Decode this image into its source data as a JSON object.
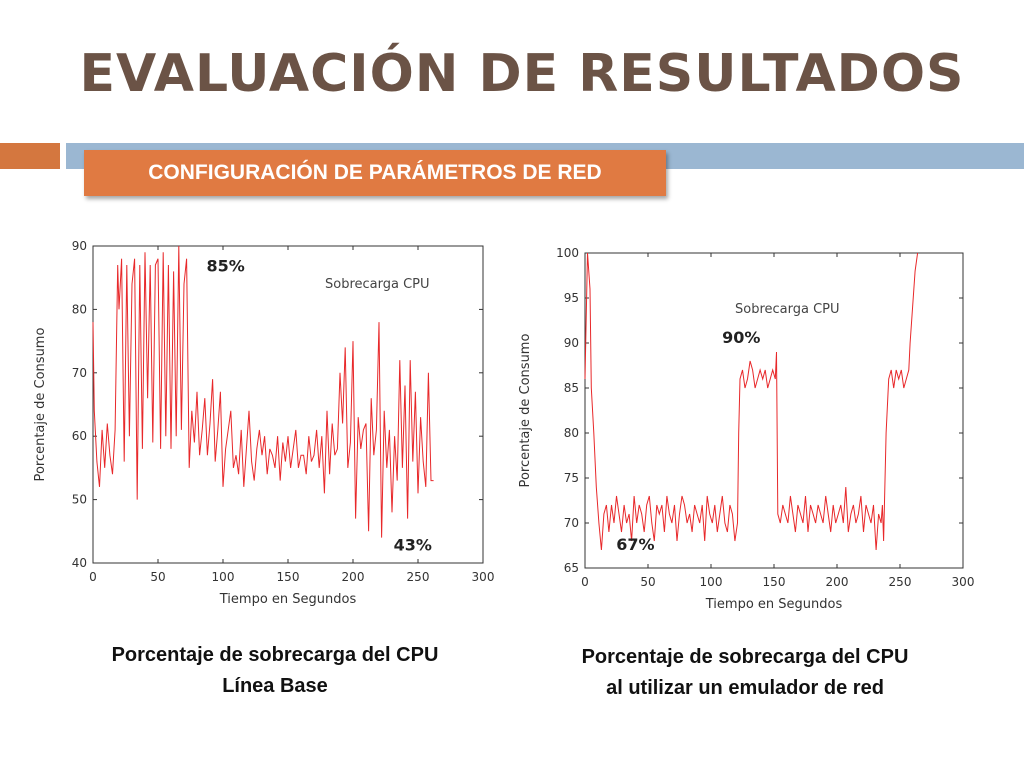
{
  "slide": {
    "title": "EVALUACIÓN DE RESULTADOS",
    "subtitle": "CONFIGURACIÓN DE PARÁMETROS DE RED",
    "accent_colors": {
      "title": "#6b5346",
      "orange": "#e07a42",
      "blue": "#9bb7d2"
    }
  },
  "chart_data": [
    {
      "type": "line",
      "legend": "Sobrecarga CPU",
      "legend_position": "top-right",
      "xlabel": "Tiempo en Segundos",
      "ylabel": "Porcentaje de Consumo",
      "xlim": [
        0,
        300
      ],
      "ylim": [
        40,
        90
      ],
      "xticks": [
        0,
        50,
        100,
        150,
        200,
        250,
        300
      ],
      "yticks": [
        40,
        50,
        60,
        70,
        80,
        90
      ],
      "line_color": "#e8282a",
      "annotations": [
        {
          "text": "85%",
          "x": 102,
          "y": 86
        },
        {
          "text": "43%",
          "x": 246,
          "y": 42
        }
      ],
      "series": [
        {
          "x": [
            0,
            1,
            3,
            5,
            7,
            9,
            11,
            13,
            15,
            17,
            19,
            20,
            22,
            24,
            26,
            28,
            30,
            32,
            34,
            36,
            38,
            40,
            42,
            44,
            46,
            48,
            50,
            52,
            54,
            56,
            58,
            60,
            62,
            64,
            66,
            68,
            70,
            72,
            74,
            76,
            78,
            80,
            82,
            84,
            86,
            88,
            90,
            92,
            94,
            96,
            98,
            100,
            102,
            104,
            106,
            108,
            110,
            112,
            114,
            116,
            118,
            120,
            122,
            124,
            126,
            128,
            130,
            132,
            134,
            136,
            138,
            140,
            142,
            144,
            146,
            148,
            150,
            152,
            154,
            156,
            158,
            160,
            162,
            164,
            166,
            168,
            170,
            172,
            174,
            176,
            178,
            180,
            182,
            184,
            186,
            188,
            190,
            192,
            194,
            196,
            198,
            200,
            202,
            204,
            206,
            208,
            210,
            212,
            214,
            216,
            218,
            220,
            222,
            224,
            226,
            228,
            230,
            232,
            234,
            236,
            238,
            240,
            242,
            244,
            246,
            248,
            250,
            252,
            254,
            256,
            258,
            260,
            262
          ],
          "y": [
            78,
            64,
            56,
            52,
            61,
            55,
            62,
            57,
            54,
            61,
            87,
            80,
            88,
            56,
            87,
            60,
            84,
            88,
            50,
            87,
            58,
            89,
            66,
            87,
            59,
            87,
            88,
            58,
            89,
            60,
            87,
            58,
            86,
            60,
            90,
            61,
            84,
            88,
            55,
            64,
            59,
            67,
            57,
            61,
            66,
            57,
            62,
            69,
            56,
            61,
            67,
            52,
            58,
            61,
            64,
            55,
            57,
            54,
            61,
            52,
            58,
            64,
            56,
            53,
            58,
            61,
            57,
            60,
            54,
            58,
            57,
            55,
            60,
            53,
            59,
            56,
            60,
            55,
            58,
            61,
            55,
            57,
            57,
            54,
            60,
            56,
            57,
            61,
            55,
            60,
            51,
            64,
            54,
            62,
            57,
            58,
            70,
            62,
            74,
            55,
            59,
            75,
            47,
            63,
            58,
            61,
            62,
            45,
            66,
            57,
            61,
            78,
            44,
            64,
            55,
            61,
            48,
            60,
            53,
            72,
            55,
            68,
            47,
            72,
            56,
            67,
            51,
            63,
            56,
            52,
            70,
            53,
            53
          ]
        }
      ]
    },
    {
      "type": "line",
      "legend": "Sobrecarga CPU",
      "legend_position": "top-center",
      "xlabel": "Tiempo en Segundos",
      "ylabel": "Porcentaje de Consumo",
      "xlim": [
        0,
        300
      ],
      "ylim": [
        65,
        100
      ],
      "xticks": [
        0,
        50,
        100,
        150,
        200,
        250,
        300
      ],
      "yticks": [
        65,
        70,
        75,
        80,
        85,
        90,
        95,
        100
      ],
      "line_color": "#e8282a",
      "annotations": [
        {
          "text": "90%",
          "x": 124,
          "y": 90
        },
        {
          "text": "67%",
          "x": 40,
          "y": 67
        }
      ],
      "series": [
        {
          "x": [
            0,
            2,
            4,
            5,
            7,
            9,
            11,
            13,
            15,
            17,
            19,
            21,
            23,
            25,
            27,
            29,
            31,
            33,
            35,
            37,
            39,
            41,
            43,
            45,
            47,
            49,
            51,
            53,
            55,
            57,
            59,
            61,
            63,
            65,
            67,
            69,
            71,
            73,
            75,
            77,
            79,
            81,
            83,
            85,
            87,
            89,
            91,
            93,
            95,
            97,
            99,
            101,
            103,
            105,
            107,
            109,
            111,
            113,
            115,
            117,
            119,
            121,
            122,
            123,
            125,
            127,
            129,
            131,
            133,
            135,
            137,
            139,
            141,
            143,
            145,
            147,
            149,
            151,
            152,
            153,
            155,
            157,
            159,
            161,
            163,
            165,
            167,
            169,
            171,
            173,
            175,
            177,
            179,
            181,
            183,
            185,
            187,
            189,
            191,
            193,
            195,
            197,
            199,
            201,
            203,
            205,
            207,
            209,
            211,
            213,
            215,
            217,
            219,
            221,
            223,
            225,
            227,
            229,
            231,
            233,
            235,
            236,
            237,
            239,
            241,
            243,
            245,
            247,
            249,
            251,
            253,
            255,
            257,
            258,
            260,
            262,
            264
          ],
          "y": [
            86,
            100,
            96,
            85,
            80,
            74,
            70,
            67,
            71,
            72,
            69,
            72,
            70,
            73,
            71,
            69,
            72,
            70,
            71,
            68,
            73,
            70,
            72,
            71,
            69,
            72,
            73,
            70,
            68,
            72,
            71,
            72,
            69,
            73,
            71,
            70,
            72,
            68,
            71,
            73,
            72,
            70,
            71,
            69,
            72,
            71,
            70,
            72,
            68,
            73,
            71,
            70,
            72,
            69,
            71,
            73,
            70,
            69,
            72,
            71,
            68,
            70,
            80,
            86,
            87,
            85,
            86,
            88,
            87,
            85,
            86,
            87,
            86,
            87,
            85,
            86,
            87,
            86,
            89,
            71,
            70,
            72,
            71,
            70,
            73,
            71,
            69,
            72,
            71,
            70,
            73,
            69,
            72,
            71,
            70,
            72,
            71,
            70,
            73,
            71,
            69,
            72,
            70,
            71,
            72,
            70,
            74,
            69,
            71,
            72,
            70,
            71,
            73,
            69,
            72,
            71,
            70,
            72,
            67,
            71,
            70,
            72,
            68,
            80,
            86,
            87,
            85,
            87,
            86,
            87,
            85,
            86,
            87,
            90,
            94,
            98,
            100
          ]
        }
      ]
    }
  ],
  "captions": [
    {
      "line1": "Porcentaje de sobrecarga del CPU",
      "line2": "Línea Base"
    },
    {
      "line1": "Porcentaje de sobrecarga del CPU",
      "line2": "al utilizar un emulador de red"
    }
  ]
}
